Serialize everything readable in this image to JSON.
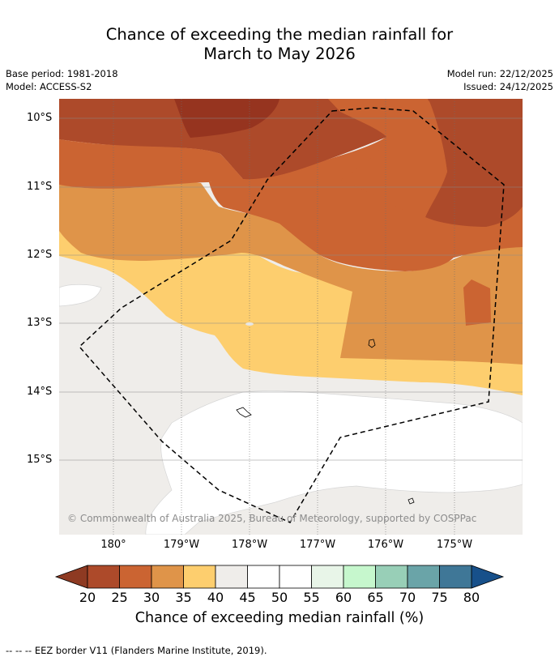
{
  "title": {
    "line1": "Chance of exceeding the median rainfall for",
    "line2": "March to May 2026"
  },
  "meta": {
    "base_period": "Base period: 1981-2018",
    "model": "Model: ACCESS-S2",
    "model_run": "Model run: 22/12/2025",
    "issued": "Issued: 24/12/2025"
  },
  "map": {
    "lat_labels": [
      "10°S",
      "11°S",
      "12°S",
      "13°S",
      "14°S",
      "15°S"
    ],
    "lon_labels": [
      "180°",
      "179°W",
      "178°W",
      "177°W",
      "176°W",
      "175°W"
    ],
    "copyright": "© Commonwealth of Australia 2025, Bureau of Meteorology, supported by COSPPac"
  },
  "colorbar": {
    "ticks": [
      "20",
      "25",
      "30",
      "35",
      "40",
      "45",
      "50",
      "55",
      "60",
      "65",
      "70",
      "75",
      "80"
    ],
    "colors": [
      "#ad4a2a",
      "#cb6432",
      "#df9449",
      "#fdce6e",
      "#efedea",
      "#ffffff",
      "#ffffff",
      "#e8f5e8",
      "#c6f7cd",
      "#98cfb7",
      "#6aa4a8",
      "#3f7797"
    ],
    "under_color": "#8e3a22",
    "over_color": "#17508a",
    "title": "Chance of exceeding median rainfall (%)"
  },
  "legend": {
    "eez_note": "--  --  -- EEZ border V11 (Flanders Marine Institute, 2019)."
  }
}
